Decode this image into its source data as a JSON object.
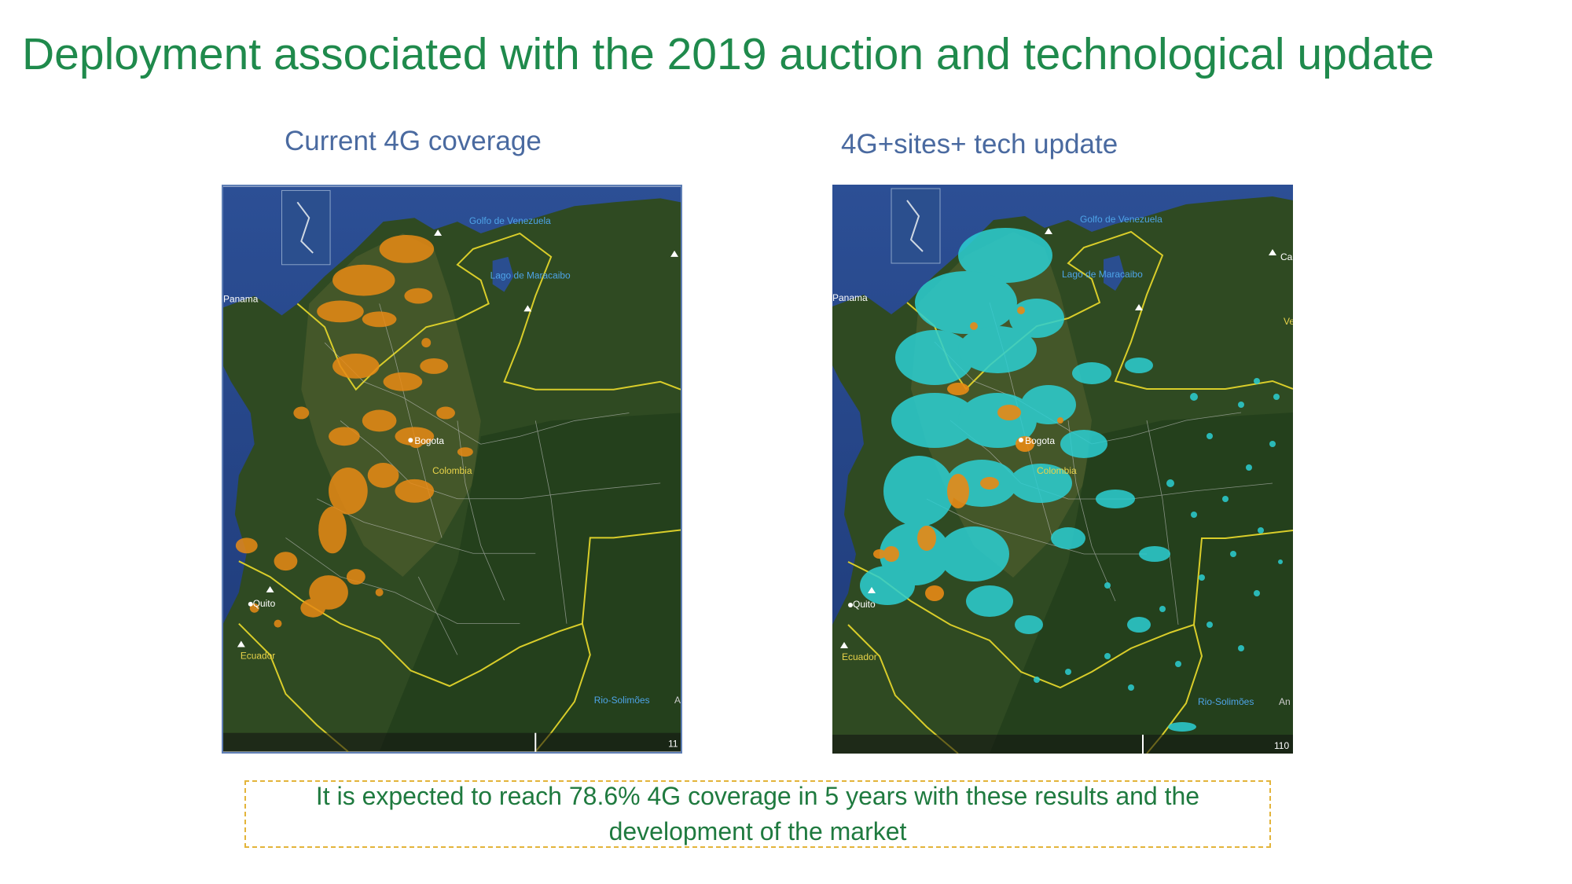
{
  "title": "Deployment associated with the 2019 auction and technological update",
  "maps": {
    "left": {
      "caption": "Current 4G coverage",
      "overlay_color": "#e88a15",
      "labels": {
        "gulf": "Golfo de Venezuela",
        "lake": "Lago de Maracaibo",
        "panama": "Panama",
        "bogota": "Bogota",
        "colombia": "Colombia",
        "quito": "Quito",
        "ecuador": "Ecuador",
        "river": "Rio-Solimões",
        "river_cut": "A",
        "scale": "11"
      }
    },
    "right": {
      "caption": "4G+sites+ tech update",
      "overlay_color": "#2ccfd3",
      "secondary_color": "#e88a15",
      "labels": {
        "gulf": "Golfo de Venezuela",
        "lake": "Lago de Maracaibo",
        "panama": "Panama",
        "bogota": "Bogota",
        "colombia": "Colombia",
        "quito": "Quito",
        "ecuador": "Ecuador",
        "river": "Rio-Solimões",
        "river_cut": "An",
        "edge": "Ca",
        "edge2": "Ve",
        "scale": "110"
      }
    }
  },
  "note": "It is expected to reach 78.6% 4G coverage in 5 years with these results and the development of the market"
}
